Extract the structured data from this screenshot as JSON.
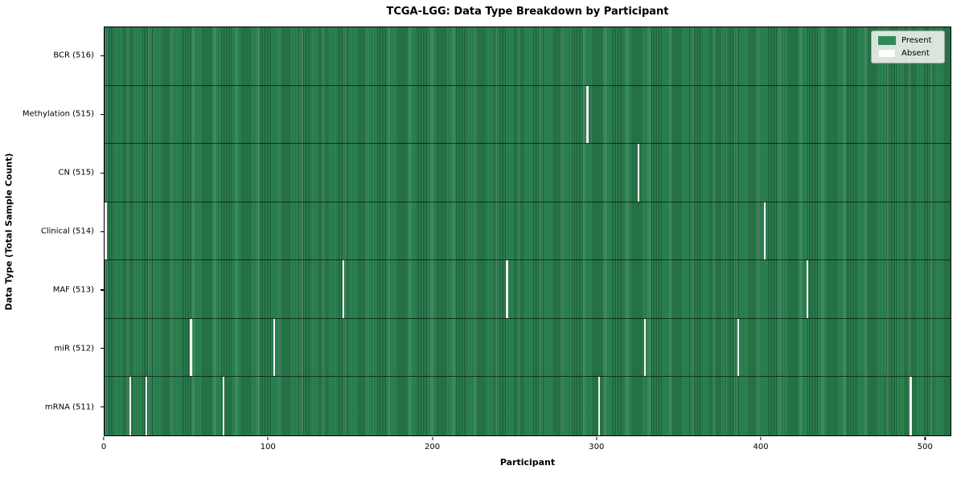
{
  "chart_data": {
    "type": "heatmap",
    "title": "TCGA-LGG: Data Type Breakdown by Participant",
    "xlabel": "Participant",
    "ylabel": "Data Type (Total Sample Count)",
    "x_ticks": [
      0,
      100,
      200,
      300,
      400,
      500
    ],
    "xlim": [
      0,
      516
    ],
    "n_participants": 516,
    "grid": false,
    "legend_position": "upper right",
    "colors": {
      "present": "#2e8b57",
      "absent": "#ffffff",
      "row_divider": "#1a1a1a"
    },
    "legend": [
      {
        "label": "Present",
        "color": "#2e8b57",
        "border": ""
      },
      {
        "label": "Absent",
        "color": "#ffffff",
        "border": "#dddddd"
      }
    ],
    "rows": [
      {
        "name": "BCR",
        "label": "BCR (516)",
        "total": 516,
        "absent_participants": []
      },
      {
        "name": "Methylation",
        "label": "Methylation (515)",
        "total": 515,
        "absent_participants": [
          294
        ]
      },
      {
        "name": "CN",
        "label": "CN (515)",
        "total": 515,
        "absent_participants": [
          325
        ]
      },
      {
        "name": "Clinical",
        "label": "Clinical (514)",
        "total": 514,
        "absent_participants": [
          0,
          402
        ]
      },
      {
        "name": "MAF",
        "label": "MAF (513)",
        "total": 513,
        "absent_participants": [
          145,
          245,
          428
        ]
      },
      {
        "name": "miR",
        "label": "miR (512)",
        "total": 512,
        "absent_participants": [
          52,
          103,
          329,
          386
        ]
      },
      {
        "name": "mRNA",
        "label": "mRNA (511)",
        "total": 511,
        "absent_participants": [
          15,
          25,
          72,
          301,
          491
        ]
      }
    ]
  }
}
